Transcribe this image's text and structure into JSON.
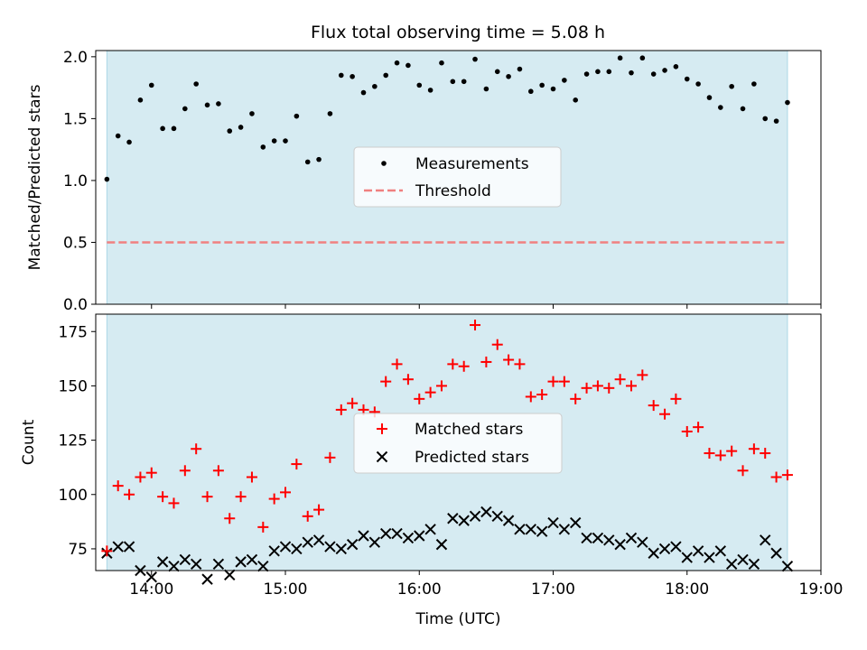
{
  "figure": {
    "title": "Flux total observing time = 5.08 h"
  },
  "colors": {
    "span": "#add8e6",
    "measurements": "#000000",
    "threshold": "#f08080",
    "matched": "#ff0000",
    "predicted": "#000000",
    "axes": "#000000"
  },
  "chart_data": [
    {
      "type": "scatter",
      "ylabel": "Matched/Predicted stars",
      "xlabel": "",
      "ylim": [
        0,
        2.05
      ],
      "yticks": [
        0.0,
        0.5,
        1.0,
        1.5,
        2.0
      ],
      "ytick_labels": [
        "0.0",
        "0.5",
        "1.0",
        "1.5",
        "2.0"
      ],
      "shaded_span": {
        "x_start": "13:40",
        "x_end": "18:45"
      },
      "legend": {
        "placement": "center",
        "entries": [
          "Measurements",
          "Threshold"
        ]
      },
      "threshold": {
        "name": "Threshold",
        "y": 0.5,
        "style": "dashed"
      },
      "series": [
        {
          "name": "Measurements",
          "marker": "dot",
          "x": [
            "13:40",
            "13:45",
            "13:50",
            "13:55",
            "14:00",
            "14:05",
            "14:10",
            "14:15",
            "14:20",
            "14:25",
            "14:30",
            "14:35",
            "14:40",
            "14:45",
            "14:50",
            "14:55",
            "15:00",
            "15:05",
            "15:10",
            "15:15",
            "15:20",
            "15:25",
            "15:30",
            "15:35",
            "15:40",
            "15:45",
            "15:50",
            "15:55",
            "16:00",
            "16:05",
            "16:10",
            "16:15",
            "16:20",
            "16:25",
            "16:30",
            "16:35",
            "16:40",
            "16:45",
            "16:50",
            "16:55",
            "17:00",
            "17:05",
            "17:10",
            "17:15",
            "17:20",
            "17:25",
            "17:30",
            "17:35",
            "17:40",
            "17:45",
            "17:50",
            "17:55",
            "18:00",
            "18:05",
            "18:10",
            "18:15",
            "18:20",
            "18:25",
            "18:30",
            "18:35",
            "18:40",
            "18:45"
          ],
          "y": [
            1.01,
            1.36,
            1.31,
            1.65,
            1.77,
            1.42,
            1.42,
            1.58,
            1.78,
            1.61,
            1.62,
            1.4,
            1.43,
            1.54,
            1.27,
            1.32,
            1.32,
            1.52,
            1.15,
            1.17,
            1.54,
            1.85,
            1.84,
            1.71,
            1.76,
            1.85,
            1.95,
            1.93,
            1.77,
            1.73,
            1.95,
            1.8,
            1.8,
            1.98,
            1.74,
            1.88,
            1.84,
            1.9,
            1.72,
            1.77,
            1.74,
            1.81,
            1.65,
            1.86,
            1.88,
            1.88,
            1.99,
            1.87,
            1.99,
            1.86,
            1.89,
            1.92,
            1.82,
            1.78,
            1.67,
            1.59,
            1.76,
            1.58,
            1.78,
            1.5,
            1.48,
            1.63
          ]
        }
      ]
    },
    {
      "type": "scatter",
      "ylabel": "Count",
      "xlabel": "Time (UTC)",
      "xlim": [
        "13:35",
        "19:00"
      ],
      "xticks": [
        "14:00",
        "15:00",
        "16:00",
        "17:00",
        "18:00",
        "19:00"
      ],
      "ylim": [
        65,
        183
      ],
      "yticks": [
        75,
        100,
        125,
        150,
        175
      ],
      "shaded_span": {
        "x_start": "13:40",
        "x_end": "18:45"
      },
      "legend": {
        "placement": "center",
        "entries": [
          "Matched stars",
          "Predicted stars"
        ]
      },
      "series": [
        {
          "name": "Matched stars",
          "marker": "plus",
          "x": [
            "13:40",
            "13:45",
            "13:50",
            "13:55",
            "14:00",
            "14:05",
            "14:10",
            "14:15",
            "14:20",
            "14:25",
            "14:30",
            "14:35",
            "14:40",
            "14:45",
            "14:50",
            "14:55",
            "15:00",
            "15:05",
            "15:10",
            "15:15",
            "15:20",
            "15:25",
            "15:30",
            "15:35",
            "15:40",
            "15:45",
            "15:50",
            "15:55",
            "16:00",
            "16:05",
            "16:10",
            "16:15",
            "16:20",
            "16:25",
            "16:30",
            "16:35",
            "16:40",
            "16:45",
            "16:50",
            "16:55",
            "17:00",
            "17:05",
            "17:10",
            "17:15",
            "17:20",
            "17:25",
            "17:30",
            "17:35",
            "17:40",
            "17:45",
            "17:50",
            "17:55",
            "18:00",
            "18:05",
            "18:10",
            "18:15",
            "18:20",
            "18:25",
            "18:30",
            "18:35",
            "18:40",
            "18:45"
          ],
          "y": [
            74,
            104,
            100,
            108,
            110,
            99,
            96,
            111,
            121,
            99,
            111,
            89,
            99,
            108,
            85,
            98,
            101,
            114,
            90,
            93,
            117,
            139,
            142,
            139,
            138,
            152,
            160,
            153,
            144,
            147,
            150,
            160,
            159,
            178,
            161,
            169,
            162,
            160,
            145,
            146,
            152,
            152,
            144,
            149,
            150,
            149,
            153,
            150,
            155,
            141,
            137,
            144,
            129,
            131,
            119,
            118,
            120,
            111,
            121,
            119,
            108,
            109
          ]
        },
        {
          "name": "Predicted stars",
          "marker": "x",
          "x": [
            "13:40",
            "13:45",
            "13:50",
            "13:55",
            "14:00",
            "14:05",
            "14:10",
            "14:15",
            "14:20",
            "14:25",
            "14:30",
            "14:35",
            "14:40",
            "14:45",
            "14:50",
            "14:55",
            "15:00",
            "15:05",
            "15:10",
            "15:15",
            "15:20",
            "15:25",
            "15:30",
            "15:35",
            "15:40",
            "15:45",
            "15:50",
            "15:55",
            "16:00",
            "16:05",
            "16:10",
            "16:15",
            "16:20",
            "16:25",
            "16:30",
            "16:35",
            "16:40",
            "16:45",
            "16:50",
            "16:55",
            "17:00",
            "17:05",
            "17:10",
            "17:15",
            "17:20",
            "17:25",
            "17:30",
            "17:35",
            "17:40",
            "17:45",
            "17:50",
            "17:55",
            "18:00",
            "18:05",
            "18:10",
            "18:15",
            "18:20",
            "18:25",
            "18:30",
            "18:35",
            "18:40",
            "18:45"
          ],
          "y": [
            73,
            76,
            76,
            65,
            62,
            69,
            67,
            70,
            68,
            61,
            68,
            63,
            69,
            70,
            67,
            74,
            76,
            75,
            78,
            79,
            76,
            75,
            77,
            81,
            78,
            82,
            82,
            80,
            81,
            84,
            77,
            89,
            88,
            90,
            92,
            90,
            88,
            84,
            84,
            83,
            87,
            84,
            87,
            80,
            80,
            79,
            77,
            80,
            78,
            73,
            75,
            76,
            71,
            74,
            71,
            74,
            68,
            70,
            68,
            79,
            73,
            67
          ]
        }
      ]
    }
  ]
}
